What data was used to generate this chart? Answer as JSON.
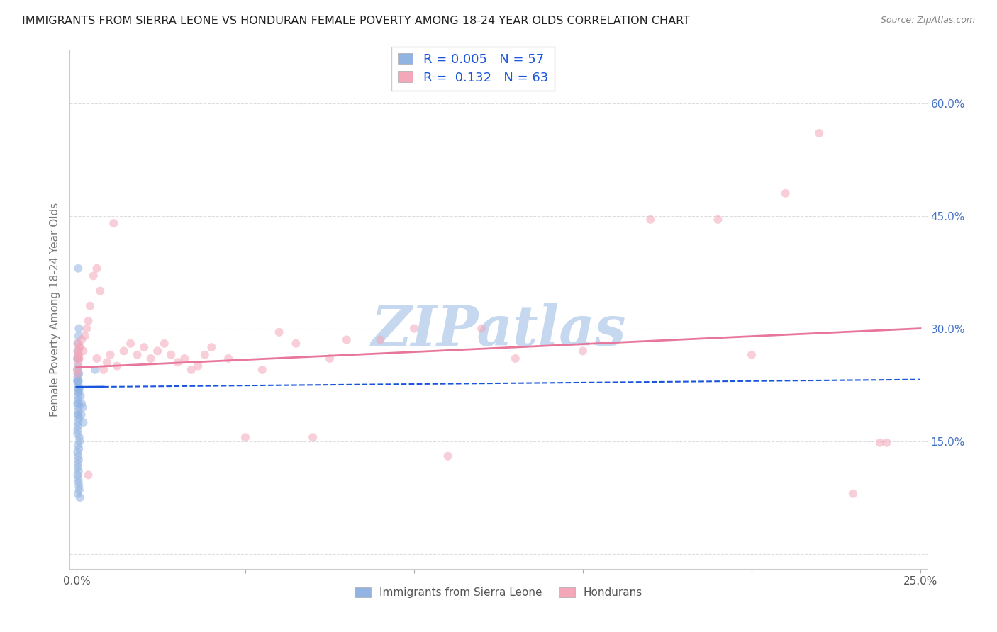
{
  "title": "IMMIGRANTS FROM SIERRA LEONE VS HONDURAN FEMALE POVERTY AMONG 18-24 YEAR OLDS CORRELATION CHART",
  "source": "Source: ZipAtlas.com",
  "ylabel": "Female Poverty Among 18-24 Year Olds",
  "xlim": [
    -0.002,
    0.252
  ],
  "ylim": [
    -0.02,
    0.67
  ],
  "x_tick_positions": [
    0.0,
    0.05,
    0.1,
    0.15,
    0.2,
    0.25
  ],
  "x_tick_labels": [
    "0.0%",
    "",
    "",
    "",
    "",
    "25.0%"
  ],
  "y_tick_positions": [
    0.0,
    0.15,
    0.3,
    0.45,
    0.6
  ],
  "y_tick_labels_right": [
    "",
    "15.0%",
    "30.0%",
    "45.0%",
    "60.0%"
  ],
  "sierra_leone_color": "#92b4e3",
  "hondurans_color": "#f4a7b9",
  "trendline_sl_color": "#1a56db",
  "trendline_h_color": "#e8769a",
  "legend_R_sl": "0.005",
  "legend_N_sl": "57",
  "legend_R_h": "0.132",
  "legend_N_h": "63",
  "background_color": "#ffffff",
  "grid_color": "#dddddd",
  "watermark_text": "ZIPatlas",
  "watermark_color": "#c5d8f0",
  "marker_size": 75,
  "marker_alpha": 0.55,
  "sl_x": [
    0.0002,
    0.0003,
    0.0005,
    0.0004,
    0.0006,
    0.0003,
    0.0005,
    0.0007,
    0.0004,
    0.0002,
    0.0005,
    0.0004,
    0.0003,
    0.0006,
    0.0004,
    0.0003,
    0.0005,
    0.0007,
    0.0004,
    0.0002,
    0.0006,
    0.0005,
    0.0004,
    0.0003,
    0.0007,
    0.0004,
    0.0003,
    0.0005,
    0.0006,
    0.0004,
    0.0008,
    0.0005,
    0.0003,
    0.0006,
    0.0004,
    0.0003,
    0.0005,
    0.0007,
    0.0009,
    0.0004,
    0.0006,
    0.0005,
    0.0007,
    0.0004,
    0.0006,
    0.0008,
    0.001,
    0.0005,
    0.0007,
    0.0009,
    0.0012,
    0.0015,
    0.0018,
    0.0006,
    0.0014,
    0.002,
    0.0055
  ],
  "sl_y": [
    0.245,
    0.27,
    0.22,
    0.26,
    0.23,
    0.28,
    0.25,
    0.3,
    0.23,
    0.26,
    0.215,
    0.24,
    0.2,
    0.22,
    0.21,
    0.235,
    0.225,
    0.215,
    0.205,
    0.23,
    0.195,
    0.185,
    0.175,
    0.165,
    0.18,
    0.17,
    0.16,
    0.19,
    0.2,
    0.185,
    0.155,
    0.145,
    0.135,
    0.125,
    0.115,
    0.105,
    0.13,
    0.14,
    0.15,
    0.12,
    0.11,
    0.1,
    0.09,
    0.08,
    0.095,
    0.085,
    0.075,
    0.38,
    0.24,
    0.22,
    0.21,
    0.2,
    0.195,
    0.29,
    0.185,
    0.175,
    0.245
  ],
  "h_x": [
    0.0003,
    0.0005,
    0.0007,
    0.0004,
    0.0006,
    0.0008,
    0.0005,
    0.0007,
    0.0003,
    0.0006,
    0.001,
    0.0015,
    0.002,
    0.0025,
    0.003,
    0.0035,
    0.004,
    0.005,
    0.006,
    0.007,
    0.008,
    0.009,
    0.01,
    0.012,
    0.014,
    0.016,
    0.018,
    0.02,
    0.022,
    0.024,
    0.026,
    0.028,
    0.03,
    0.032,
    0.034,
    0.036,
    0.038,
    0.04,
    0.045,
    0.05,
    0.055,
    0.06,
    0.065,
    0.07,
    0.075,
    0.08,
    0.09,
    0.1,
    0.11,
    0.12,
    0.13,
    0.15,
    0.17,
    0.19,
    0.2,
    0.21,
    0.22,
    0.23,
    0.238,
    0.24,
    0.0035,
    0.006,
    0.011
  ],
  "h_y": [
    0.24,
    0.255,
    0.26,
    0.27,
    0.265,
    0.275,
    0.28,
    0.26,
    0.245,
    0.265,
    0.275,
    0.285,
    0.27,
    0.29,
    0.3,
    0.31,
    0.33,
    0.37,
    0.38,
    0.35,
    0.245,
    0.255,
    0.265,
    0.25,
    0.27,
    0.28,
    0.265,
    0.275,
    0.26,
    0.27,
    0.28,
    0.265,
    0.255,
    0.26,
    0.245,
    0.25,
    0.265,
    0.275,
    0.26,
    0.155,
    0.245,
    0.295,
    0.28,
    0.155,
    0.26,
    0.285,
    0.285,
    0.3,
    0.13,
    0.3,
    0.26,
    0.27,
    0.445,
    0.445,
    0.265,
    0.48,
    0.56,
    0.08,
    0.148,
    0.148,
    0.105,
    0.26,
    0.44
  ]
}
